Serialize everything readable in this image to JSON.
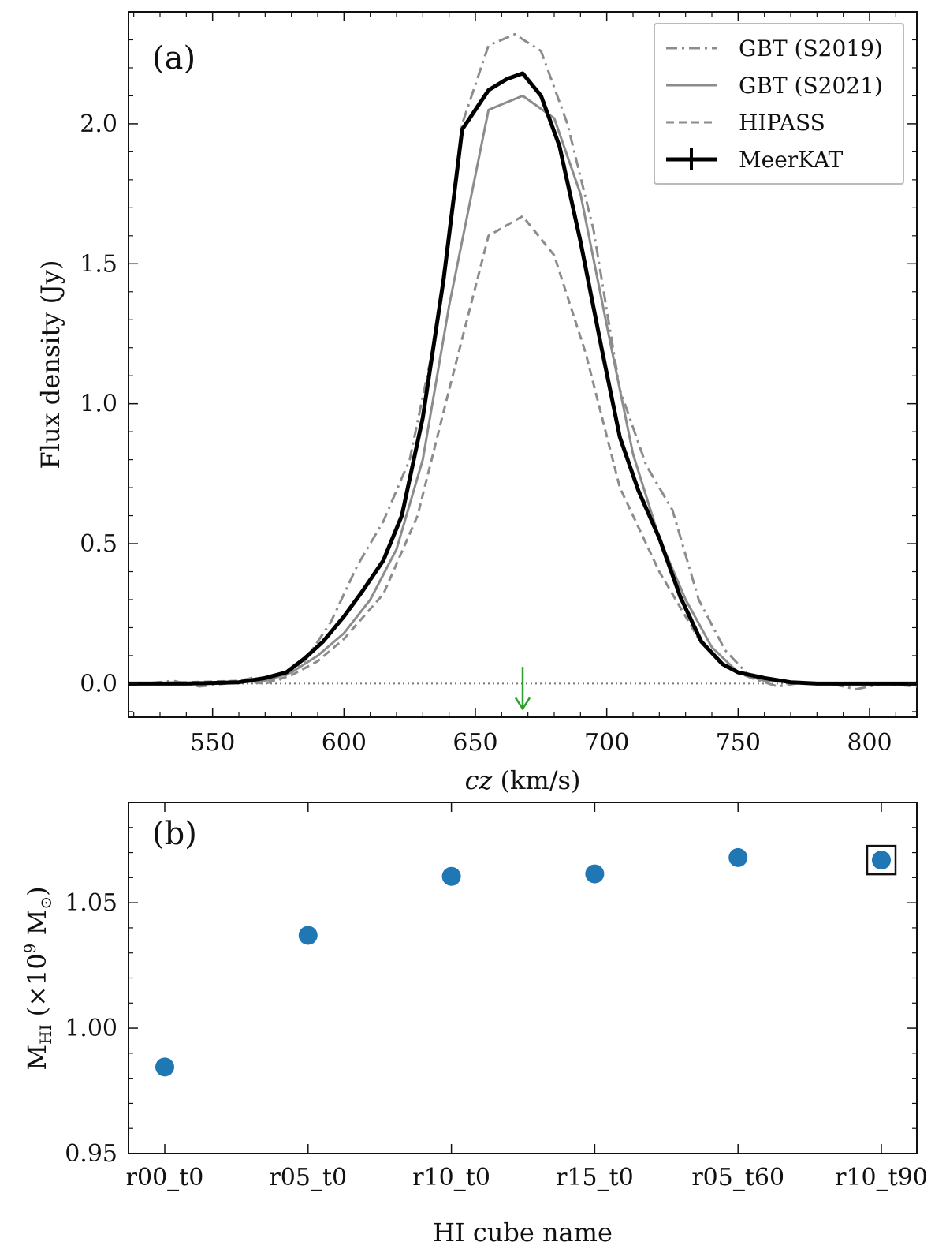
{
  "colors": {
    "gbt_s2019": "#8c8c8c",
    "gbt_s2021": "#8c8c8c",
    "hipass": "#8c8c8c",
    "meerkat": "#000000",
    "marker": "#1f77b4",
    "arrow": "#2ca02c",
    "zero_line": "#777777"
  },
  "chart_data": [
    {
      "type": "line",
      "panel_label": "(a)",
      "xlabel_italic": "cz",
      "xlabel_rest": " (km/s)",
      "ylabel": "Flux density (Jy)",
      "xlim": [
        518,
        818
      ],
      "ylim": [
        -0.12,
        2.4
      ],
      "xticks": [
        550,
        600,
        650,
        700,
        750,
        800
      ],
      "yticks": [
        0.0,
        0.5,
        1.0,
        1.5,
        2.0
      ],
      "xtick_labels": [
        "550",
        "600",
        "650",
        "700",
        "750",
        "800"
      ],
      "ytick_labels": [
        "0.0",
        "0.5",
        "1.0",
        "1.5",
        "2.0"
      ],
      "legend_position": "top-right",
      "annotation": {
        "type": "arrow",
        "x": 668,
        "y_from": 0.06,
        "y_to": -0.09
      },
      "zero_line": true,
      "series": [
        {
          "name": "GBT (S2019)",
          "style": "dashdot",
          "x": [
            518,
            535,
            545,
            555,
            565,
            575,
            585,
            595,
            605,
            615,
            625,
            635,
            645,
            655,
            665,
            675,
            685,
            695,
            705,
            715,
            725,
            735,
            745,
            755,
            765,
            775,
            785,
            795,
            805,
            818
          ],
          "y": [
            -0.005,
            0.01,
            -0.01,
            0.0,
            0.02,
            0.01,
            0.08,
            0.22,
            0.42,
            0.58,
            0.8,
            1.25,
            2.0,
            2.28,
            2.32,
            2.26,
            2.0,
            1.62,
            1.05,
            0.78,
            0.62,
            0.3,
            0.12,
            0.02,
            -0.01,
            0.005,
            0.0,
            -0.02,
            0.0,
            -0.01
          ]
        },
        {
          "name": "GBT (S2021)",
          "style": "solid",
          "x": [
            518,
            540,
            560,
            570,
            580,
            590,
            600,
            610,
            620,
            630,
            640,
            655,
            668,
            680,
            690,
            700,
            710,
            720,
            730,
            740,
            750,
            760,
            780,
            818
          ],
          "y": [
            0.0,
            0.0,
            0.005,
            0.01,
            0.04,
            0.1,
            0.18,
            0.3,
            0.48,
            0.8,
            1.35,
            2.05,
            2.1,
            2.02,
            1.75,
            1.28,
            0.82,
            0.52,
            0.3,
            0.13,
            0.04,
            0.01,
            0.0,
            0.0
          ]
        },
        {
          "name": "HIPASS",
          "style": "dashed",
          "x": [
            518,
            540,
            560,
            570,
            580,
            590,
            600,
            615,
            628,
            640,
            655,
            668,
            680,
            692,
            705,
            720,
            735,
            745,
            755,
            765,
            780,
            800,
            818
          ],
          "y": [
            0.0,
            0.005,
            0.01,
            0.0,
            0.03,
            0.08,
            0.16,
            0.32,
            0.6,
            1.05,
            1.6,
            1.67,
            1.53,
            1.18,
            0.7,
            0.4,
            0.16,
            0.06,
            0.02,
            0.01,
            0.0,
            0.0,
            0.0
          ]
        },
        {
          "name": "MeerKAT",
          "style": "solid-thick",
          "x": [
            518,
            540,
            560,
            570,
            578,
            585,
            592,
            600,
            607,
            615,
            622,
            630,
            638,
            645,
            655,
            662,
            668,
            675,
            682,
            690,
            698,
            705,
            712,
            720,
            728,
            736,
            744,
            750,
            760,
            770,
            780,
            800,
            818
          ],
          "y": [
            0.0,
            0.0,
            0.005,
            0.02,
            0.04,
            0.09,
            0.15,
            0.24,
            0.33,
            0.44,
            0.6,
            0.95,
            1.45,
            1.98,
            2.12,
            2.16,
            2.18,
            2.1,
            1.92,
            1.58,
            1.2,
            0.88,
            0.69,
            0.52,
            0.31,
            0.15,
            0.07,
            0.04,
            0.02,
            0.005,
            0.0,
            0.0,
            0.0
          ]
        }
      ]
    },
    {
      "type": "scatter",
      "panel_label": "(b)",
      "xlabel": "HI cube name",
      "ylabel_main": "M",
      "ylabel_sub": "HI",
      "ylabel_open": " (×10",
      "ylabel_exp": "9",
      "ylabel_unit": " M",
      "ylabel_sun": "⊙",
      "ylabel_close": ")",
      "ylim": [
        0.95,
        1.09
      ],
      "yticks": [
        0.95,
        1.0,
        1.05
      ],
      "ytick_labels": [
        "0.95",
        "1.00",
        "1.05"
      ],
      "categories": [
        "r00_t0",
        "r05_t0",
        "r10_t0",
        "r15_t0",
        "r05_t60",
        "r10_t90"
      ],
      "values": [
        0.9845,
        1.037,
        1.0605,
        1.0615,
        1.068,
        1.067
      ],
      "highlighted_index": 5
    }
  ]
}
